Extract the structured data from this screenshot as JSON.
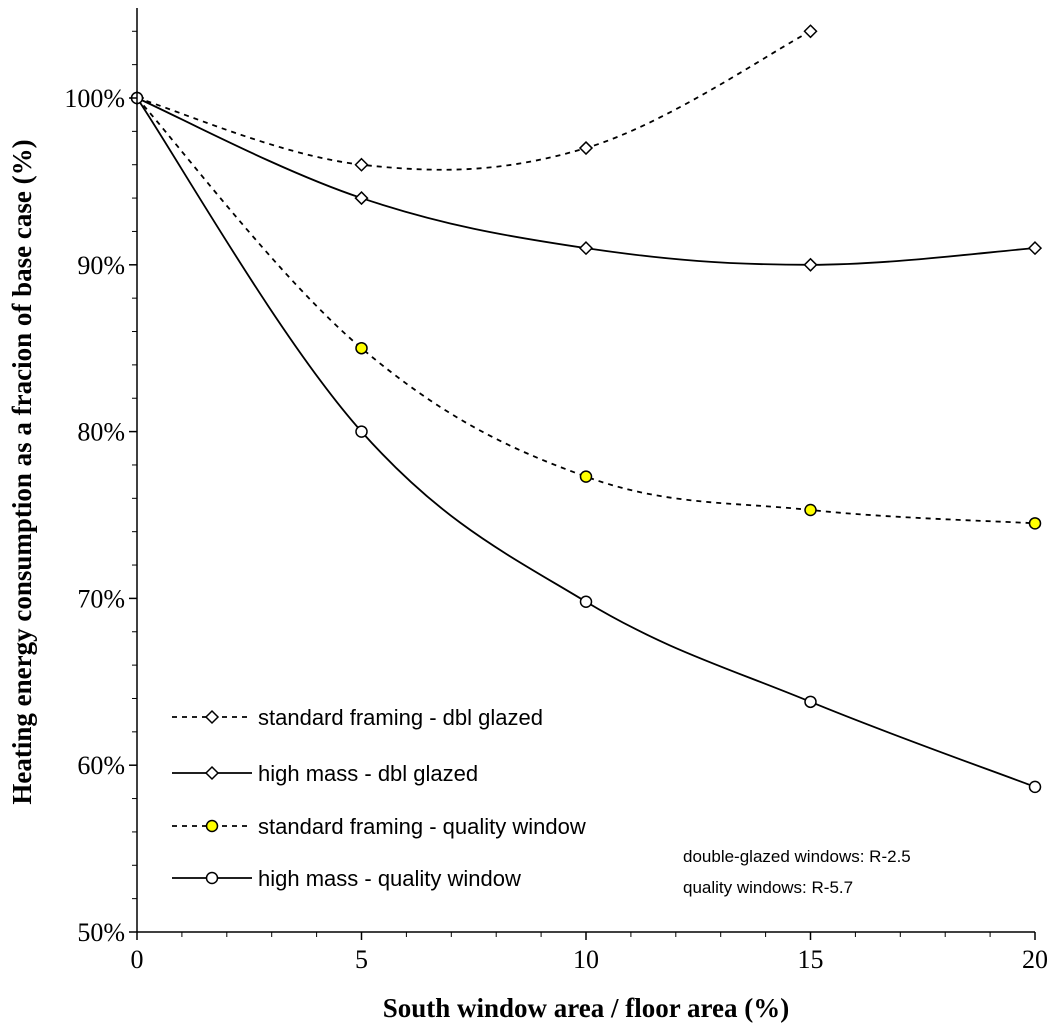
{
  "chart_data": {
    "type": "line",
    "xlabel": "South window area / floor area (%)",
    "ylabel": "Heating energy consumption as a fracion of base case (%)",
    "x_ticks": [
      "0",
      "5",
      "10",
      "15",
      "20"
    ],
    "y_ticks": [
      "50%",
      "60%",
      "70%",
      "80%",
      "90%",
      "100%"
    ],
    "xlim": [
      0,
      20
    ],
    "ylim": [
      50,
      105
    ],
    "grid": false,
    "legend_position": "bottom-left",
    "series": [
      {
        "name": "standard framing - dbl glazed",
        "marker": "diamond",
        "fill": "#ffffff",
        "dash": "dotted",
        "x": [
          0,
          5,
          10,
          15
        ],
        "y": [
          100,
          96,
          97,
          104
        ]
      },
      {
        "name": "high mass - dbl glazed",
        "marker": "diamond",
        "fill": "#ffffff",
        "dash": "solid",
        "x": [
          0,
          5,
          10,
          15,
          20
        ],
        "y": [
          100,
          94,
          91,
          90,
          91
        ]
      },
      {
        "name": "standard framing - quality window",
        "marker": "circle",
        "fill": "#ffff00",
        "dash": "dotted",
        "x": [
          0,
          5,
          10,
          15,
          20
        ],
        "y": [
          100,
          85,
          77.3,
          75.3,
          74.5
        ]
      },
      {
        "name": "high mass - quality window",
        "marker": "circle",
        "fill": "#ffffff",
        "dash": "solid",
        "x": [
          0,
          5,
          10,
          15,
          20
        ],
        "y": [
          100,
          80,
          69.8,
          63.8,
          58.7
        ]
      }
    ],
    "annotations": [
      "double-glazed windows: R-2.5",
      "quality windows: R-5.7"
    ]
  }
}
